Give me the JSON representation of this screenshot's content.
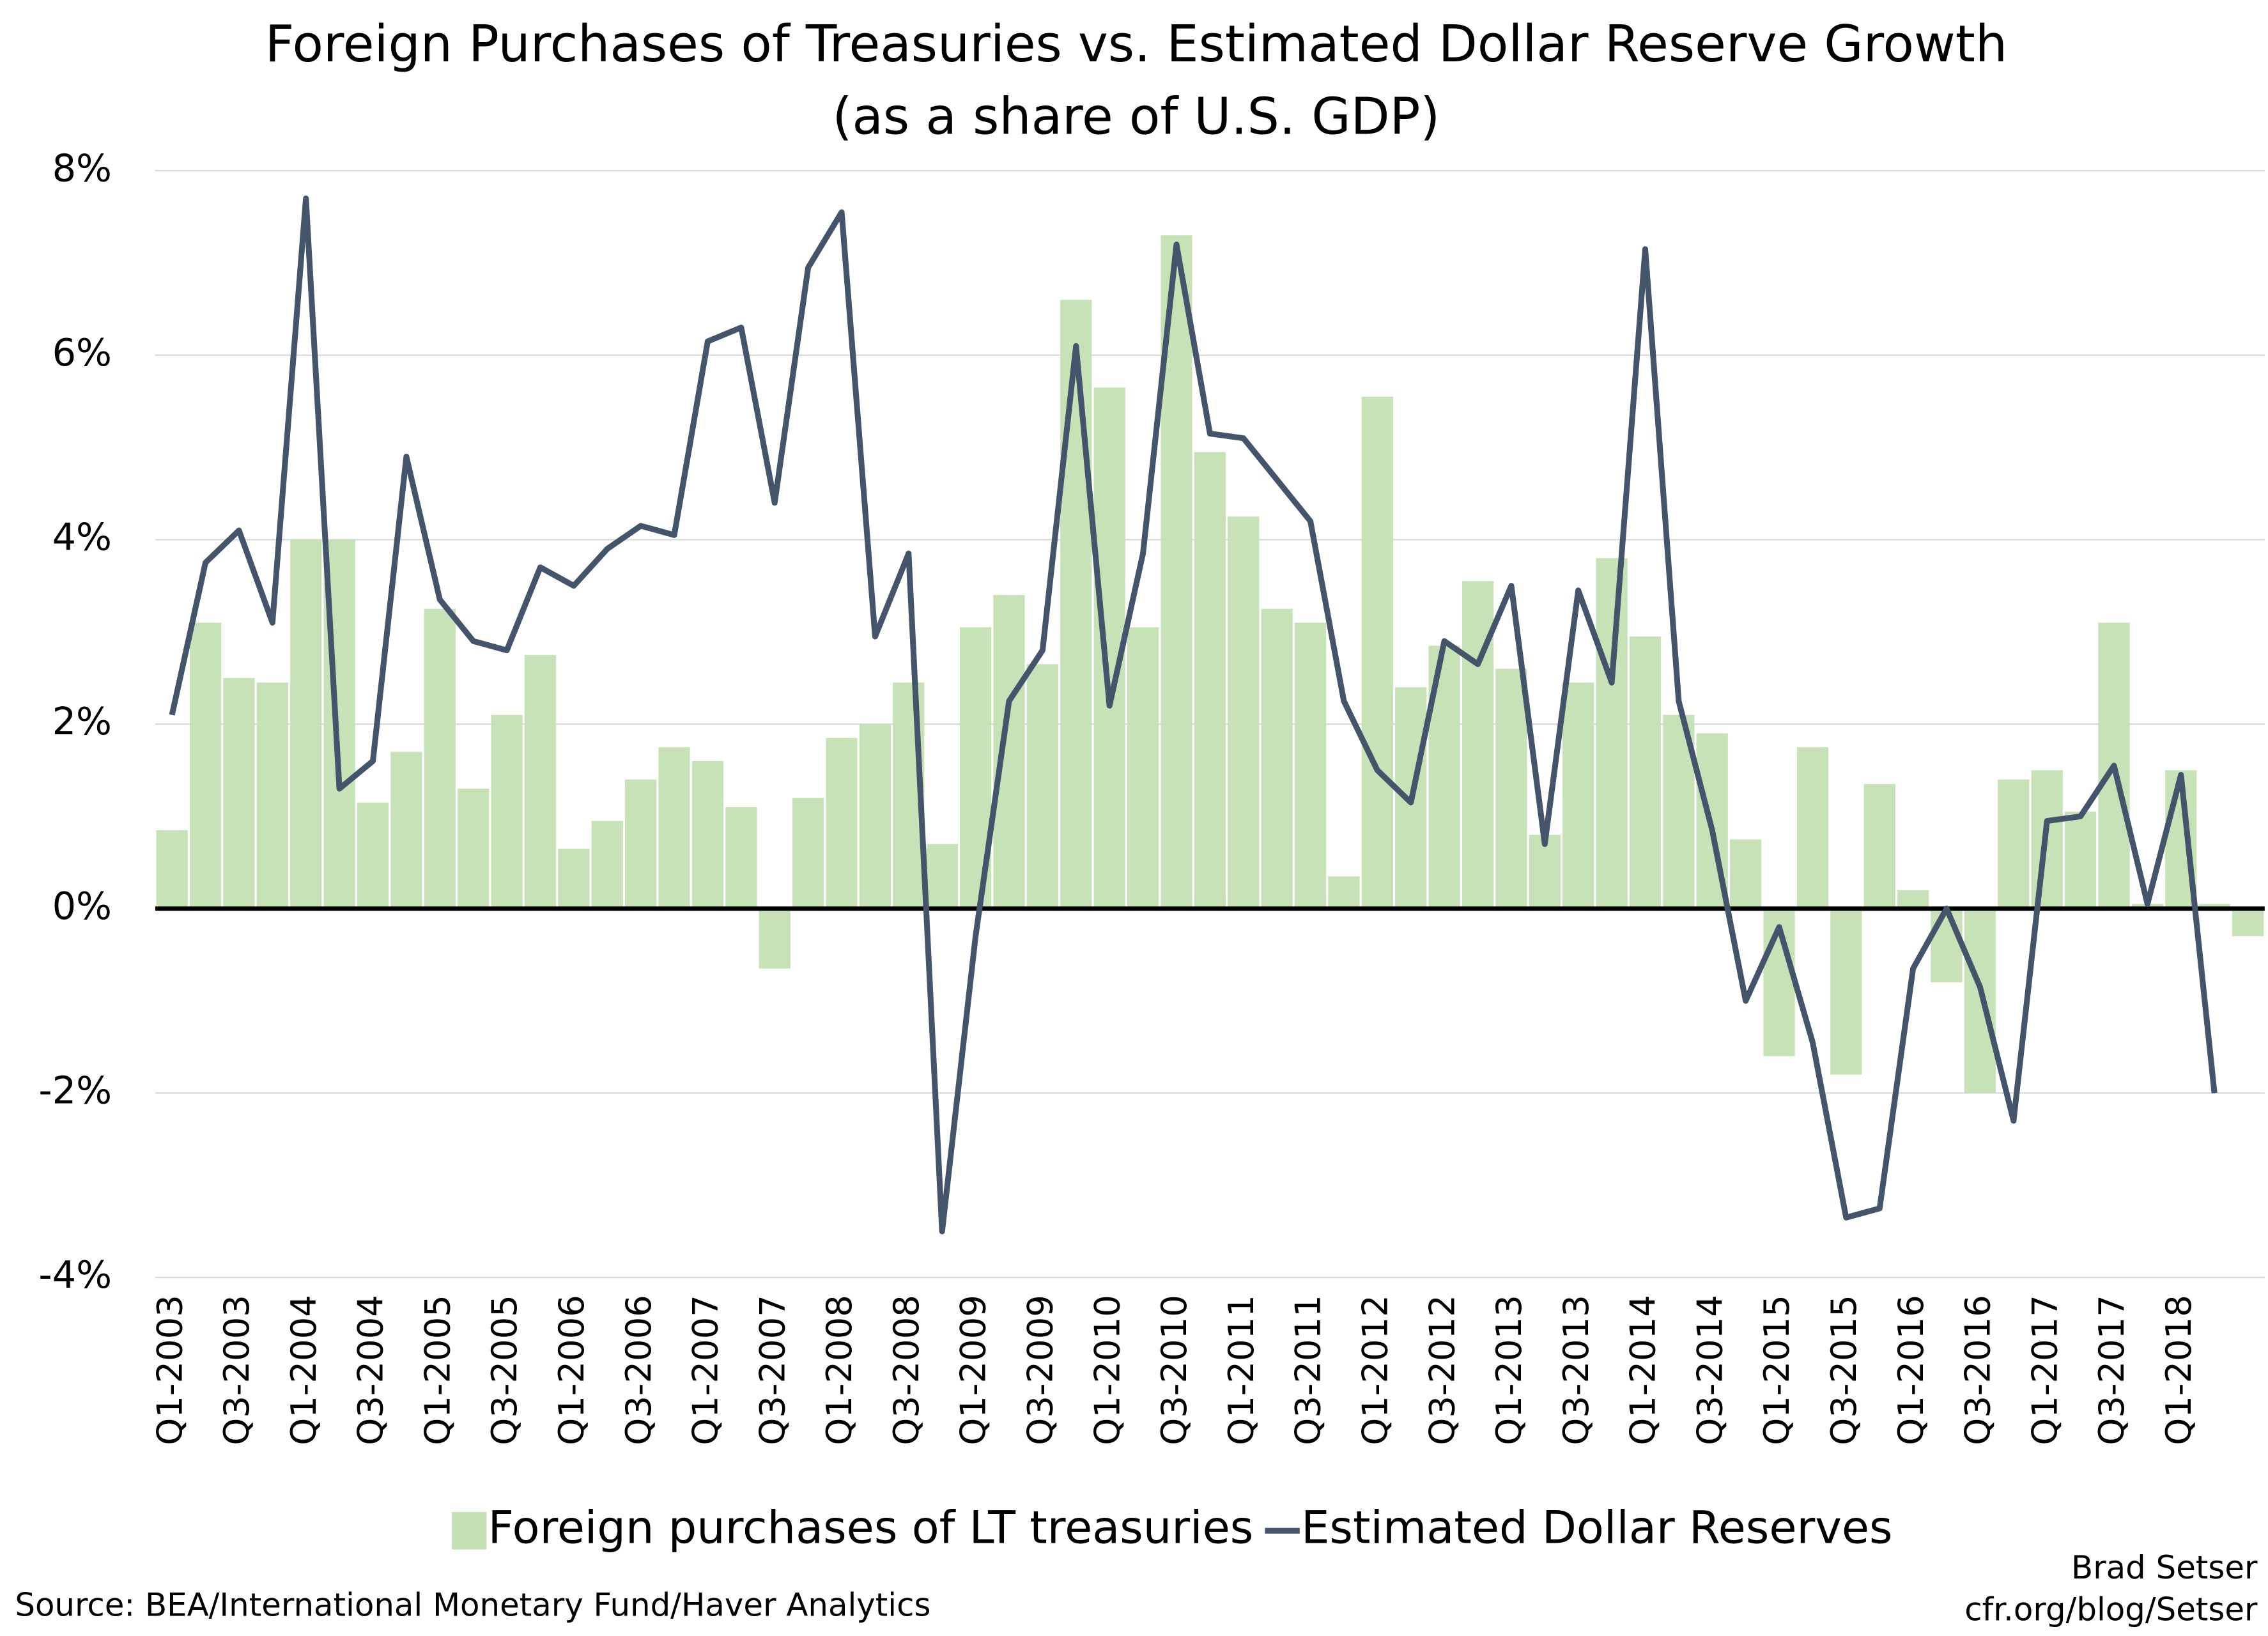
{
  "chart_data": {
    "type": "bar+line",
    "title": "Foreign Purchases of Treasuries vs. Estimated Dollar Reserve Growth",
    "subtitle": "(as a share of U.S. GDP)",
    "categories": [
      "Q1-2003",
      null,
      "Q3-2003",
      null,
      "Q1-2004",
      null,
      "Q3-2004",
      null,
      "Q1-2005",
      null,
      "Q3-2005",
      null,
      "Q1-2006",
      null,
      "Q3-2006",
      null,
      "Q1-2007",
      null,
      "Q3-2007",
      null,
      "Q1-2008",
      null,
      "Q3-2008",
      null,
      "Q1-2009",
      null,
      "Q3-2009",
      null,
      "Q1-2010",
      null,
      "Q3-2010",
      null,
      "Q1-2011",
      null,
      "Q3-2011",
      null,
      "Q1-2012",
      null,
      "Q3-2012",
      null,
      "Q1-2013",
      null,
      "Q3-2013",
      null,
      "Q1-2014",
      null,
      "Q3-2014",
      null,
      "Q1-2015",
      null,
      "Q3-2015",
      null,
      "Q1-2016",
      null,
      "Q3-2016",
      null,
      "Q1-2017",
      null,
      "Q3-2017",
      null,
      "Q1-2018",
      null,
      null
    ],
    "series": [
      {
        "name": "Foreign purchases of LT treasuries",
        "type": "bar",
        "color": "#c5e0b4",
        "values": [
          0.85,
          3.1,
          2.5,
          2.45,
          4.0,
          4.0,
          1.15,
          1.7,
          3.25,
          1.3,
          2.1,
          2.75,
          0.65,
          0.95,
          1.4,
          1.75,
          1.6,
          1.1,
          -0.65,
          1.2,
          1.85,
          2.0,
          2.45,
          0.7,
          3.05,
          3.4,
          2.65,
          6.6,
          5.65,
          3.05,
          7.3,
          4.95,
          4.25,
          3.25,
          3.1,
          0.35,
          5.55,
          2.4,
          2.85,
          3.55,
          2.6,
          0.8,
          2.45,
          3.8,
          2.95,
          2.1,
          1.9,
          0.75,
          -1.6,
          1.75,
          -1.8,
          1.35,
          0.2,
          -0.8,
          -2.0,
          1.4,
          1.5,
          1.05,
          3.1,
          0.05,
          1.5,
          0.05,
          -0.3
        ]
      },
      {
        "name": "Estimated Dollar Reserves",
        "type": "line",
        "color": "#44546a",
        "values": [
          2.1,
          3.75,
          4.1,
          3.1,
          7.7,
          1.3,
          1.6,
          4.9,
          3.35,
          2.9,
          2.8,
          3.7,
          3.5,
          3.9,
          4.15,
          4.05,
          6.15,
          6.3,
          4.4,
          6.95,
          7.55,
          2.95,
          3.85,
          -3.5,
          -0.3,
          2.25,
          2.8,
          6.1,
          2.2,
          3.85,
          7.2,
          5.15,
          5.1,
          4.65,
          4.2,
          2.25,
          1.5,
          1.15,
          2.9,
          2.65,
          3.5,
          0.7,
          3.45,
          2.45,
          7.15,
          2.25,
          0.85,
          -1.0,
          -0.2,
          -1.45,
          -3.35,
          -3.25,
          -0.65,
          0.0,
          -0.85,
          -2.3,
          0.95,
          1.0,
          1.55,
          0.05,
          1.45,
          -2.0,
          null
        ]
      }
    ],
    "ylim": [
      -4,
      8
    ],
    "yticks": [
      {
        "value": -4,
        "label": "-4%"
      },
      {
        "value": -2,
        "label": "-2%"
      },
      {
        "value": 0,
        "label": "0%"
      },
      {
        "value": 2,
        "label": "2%"
      },
      {
        "value": 4,
        "label": "4%"
      },
      {
        "value": 6,
        "label": "6%"
      },
      {
        "value": 8,
        "label": "8%"
      }
    ],
    "grid": true,
    "legend": "bottom",
    "source": "Source: BEA/International Monetary Fund/Haver Analytics",
    "credit": [
      "Brad Setser",
      "cfr.org/blog/Setser"
    ]
  }
}
